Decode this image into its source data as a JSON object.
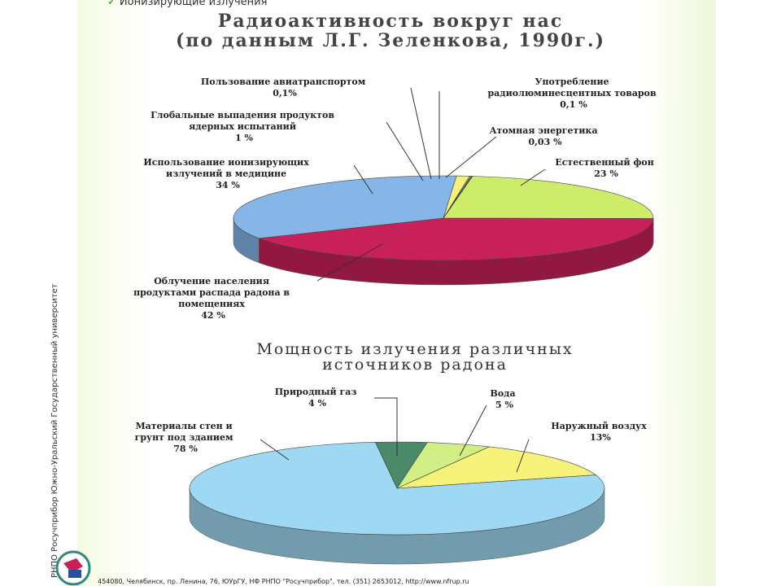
{
  "header": {
    "subtitle": "Ионизирующие излучения"
  },
  "sidebar_text": "РНПО Росучприбор    Южно-Уральский Государственный университет",
  "footer_text": "454080, Челябинск, пр. Ленина, 76, ЮУрГУ, НФ РНПО \"Росучприбор\", тел. (351) 2653012, http://www.nfrup.ru",
  "chart_data": [
    {
      "type": "pie",
      "title": "Радиоактивность вокруг нас (по данным Л.Г. Зеленкова, 1990г.)",
      "title_lines": [
        "Радиоактивность вокруг нас",
        "(по данным Л.Г. Зеленкова, 1990г.)"
      ],
      "slices": [
        {
          "label": "Естественный фон",
          "value": 23,
          "value_text": "23 %",
          "color": "#ccec6a"
        },
        {
          "label": "Облучение населения продуктами распада радона в помещениях",
          "value": 42,
          "value_text": "42 %",
          "color": "#c8215a"
        },
        {
          "label": "Использование ионизирующих излучений в медицине",
          "value": 34,
          "value_text": "34 %",
          "color": "#86b6e8"
        },
        {
          "label": "Глобальные выпадения продуктов ядерных испытаний",
          "value": 1,
          "value_text": "1 %",
          "color": "#f7f07a"
        },
        {
          "label": "Пользование авиатранспортом",
          "value": 0.1,
          "value_text": "0,1%",
          "color": "#d6d68a"
        },
        {
          "label": "Употребление радиолюминесцентных товаров",
          "value": 0.1,
          "value_text": "0,1 %",
          "color": "#7c8c4a"
        },
        {
          "label": "Атомная энергетика",
          "value": 0.03,
          "value_text": "0,03 %",
          "color": "#3d6a8a"
        }
      ]
    },
    {
      "type": "pie",
      "title": "Мощность излучения различных источников радона",
      "title_lines": [
        "Мощность излучения различных",
        "источников радона"
      ],
      "slices": [
        {
          "label": "Природный газ",
          "value": 4,
          "value_text": "4 %",
          "color": "#4a8a6a"
        },
        {
          "label": "Вода",
          "value": 5,
          "value_text": "5 %",
          "color": "#d2ee86"
        },
        {
          "label": "Наружный воздух",
          "value": 13,
          "value_text": "13%",
          "color": "#f6f27a"
        },
        {
          "label": "Материалы стен и грунт под зданием",
          "value": 78,
          "value_text": "78 %",
          "color": "#9ed8f2"
        }
      ]
    }
  ]
}
